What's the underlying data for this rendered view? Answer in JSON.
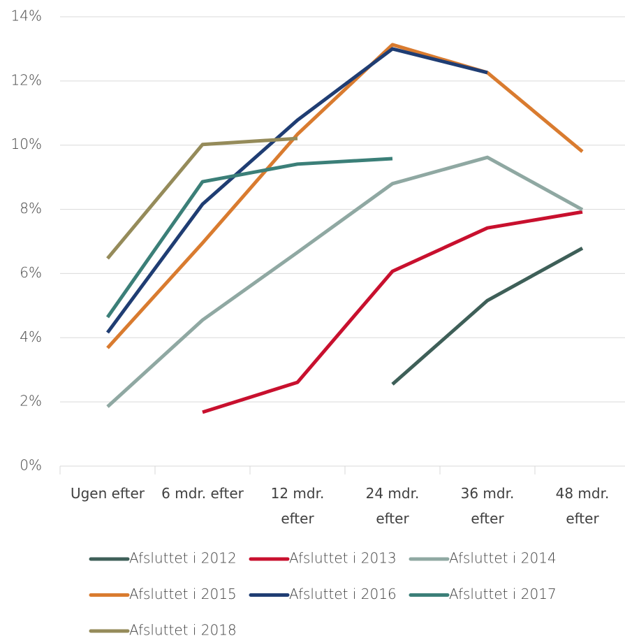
{
  "chart_data": {
    "type": "line",
    "categories": [
      "Ugen efter",
      "6 mdr. efter",
      "12 mdr.\nefter",
      "24 mdr.\nefter",
      "36 mdr.\nefter",
      "48 mdr.\nefter"
    ],
    "series": [
      {
        "name": "Afsluttet i 2012",
        "color": "#3e5f58",
        "values": [
          null,
          null,
          null,
          2.55,
          5.16,
          6.79
        ]
      },
      {
        "name": "Afsluttet i 2013",
        "color": "#c8102e",
        "values": [
          null,
          1.68,
          2.61,
          6.07,
          7.42,
          7.92
        ]
      },
      {
        "name": "Afsluttet i 2014",
        "color": "#8fa8a2",
        "values": [
          1.85,
          4.55,
          6.66,
          8.8,
          9.62,
          7.99
        ]
      },
      {
        "name": "Afsluttet i 2015",
        "color": "#d97b2f",
        "values": [
          3.68,
          6.95,
          10.34,
          13.13,
          12.26,
          9.8
        ]
      },
      {
        "name": "Afsluttet i 2016",
        "color": "#1f3d73",
        "values": [
          4.16,
          8.16,
          10.78,
          13.0,
          12.26,
          null
        ]
      },
      {
        "name": "Afsluttet i 2017",
        "color": "#3b7f78",
        "values": [
          4.64,
          8.86,
          9.41,
          9.58,
          null,
          null
        ]
      },
      {
        "name": "Afsluttet i 2018",
        "color": "#958b5a",
        "values": [
          6.47,
          10.02,
          10.21,
          null,
          null,
          null
        ]
      }
    ],
    "ylim": [
      0,
      14
    ],
    "yticks": [
      {
        "value": 0,
        "label": "0%"
      },
      {
        "value": 2,
        "label": "2%"
      },
      {
        "value": 4,
        "label": "4%"
      },
      {
        "value": 6,
        "label": "6%"
      },
      {
        "value": 8,
        "label": "8%"
      },
      {
        "value": 10,
        "label": "10%"
      },
      {
        "value": 12,
        "label": "12%"
      },
      {
        "value": 14,
        "label": "14%"
      }
    ],
    "grid": true
  }
}
